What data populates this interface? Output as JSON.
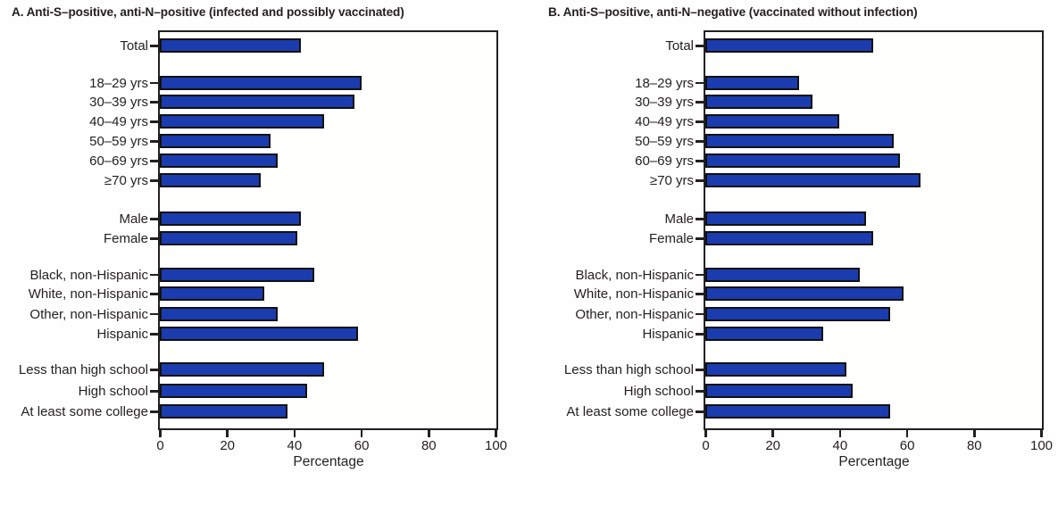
{
  "chart_data": [
    {
      "type": "bar",
      "orientation": "horizontal",
      "panel": "A",
      "title": "A. Anti-S–positive, anti-N–positive (infected and possibly vaccinated)",
      "categories": [
        "Total",
        "18–29 yrs",
        "30–39 yrs",
        "40–49 yrs",
        "50–59 yrs",
        "60–69 yrs",
        "≥70 yrs",
        "Male",
        "Female",
        "Black, non-Hispanic",
        "White, non-Hispanic",
        "Other, non-Hispanic",
        "Hispanic",
        "Less than high school",
        "High school",
        "At least some college"
      ],
      "values": [
        42,
        60,
        58,
        49,
        33,
        35,
        30,
        42,
        41,
        46,
        31,
        35,
        59,
        49,
        44,
        38
      ],
      "groups": [
        [
          0
        ],
        [
          1,
          2,
          3,
          4,
          5,
          6
        ],
        [
          7,
          8
        ],
        [
          9,
          10,
          11,
          12
        ],
        [
          13,
          14,
          15
        ]
      ],
      "xlabel": "Percentage",
      "xlim": [
        0,
        100
      ],
      "xticks": [
        0,
        20,
        40,
        60,
        80,
        100
      ],
      "grid": false,
      "legend": "none",
      "bar_color": "#1b3cae",
      "bar_outline": "#111111"
    },
    {
      "type": "bar",
      "orientation": "horizontal",
      "panel": "B",
      "title": "B. Anti-S–positive, anti-N–negative (vaccinated without infection)",
      "categories": [
        "Total",
        "18–29 yrs",
        "30–39 yrs",
        "40–49 yrs",
        "50–59 yrs",
        "60–69 yrs",
        "≥70 yrs",
        "Male",
        "Female",
        "Black, non-Hispanic",
        "White, non-Hispanic",
        "Other, non-Hispanic",
        "Hispanic",
        "Less than high school",
        "High school",
        "At least some college"
      ],
      "values": [
        50,
        28,
        32,
        40,
        56,
        58,
        64,
        48,
        50,
        46,
        59,
        55,
        35,
        42,
        44,
        55
      ],
      "groups": [
        [
          0
        ],
        [
          1,
          2,
          3,
          4,
          5,
          6
        ],
        [
          7,
          8
        ],
        [
          9,
          10,
          11,
          12
        ],
        [
          13,
          14,
          15
        ]
      ],
      "xlabel": "Percentage",
      "xlim": [
        0,
        100
      ],
      "xticks": [
        0,
        20,
        40,
        60,
        80,
        100
      ],
      "grid": false,
      "legend": "none",
      "bar_color": "#1b3cae",
      "bar_outline": "#111111"
    }
  ]
}
